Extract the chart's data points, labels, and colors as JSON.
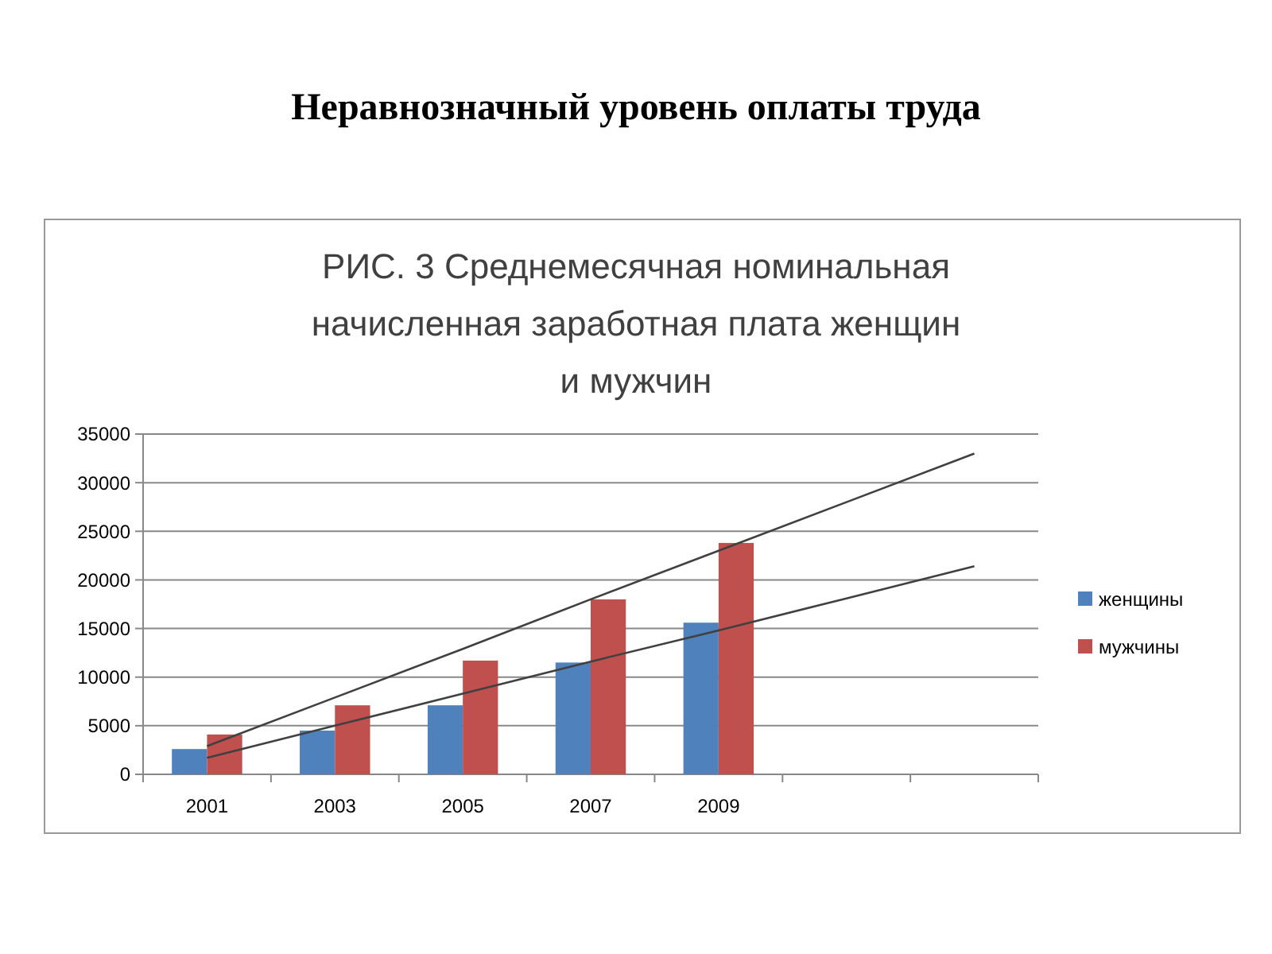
{
  "chart_data": {
    "type": "bar",
    "title": "Неравнозначный уровень оплаты труда",
    "subtitle": "РИС. 3 Среднемесячная номинальная начисленная заработная плата женщин  и мужчин",
    "categories": [
      "2001",
      "2003",
      "2005",
      "2007",
      "2009",
      null,
      null
    ],
    "series": [
      {
        "name": "женщины",
        "color": "#4f81bd",
        "values": [
          2600,
          4500,
          7100,
          11500,
          15600,
          null,
          null
        ]
      },
      {
        "name": "мужчины",
        "color": "#c0504d",
        "values": [
          4100,
          7100,
          11700,
          18000,
          23800,
          null,
          null
        ]
      },
      {
        "type": "line",
        "color": "#404040",
        "values": [
          2900,
          7900,
          12900,
          18000,
          23000,
          28000,
          33000
        ]
      },
      {
        "type": "line",
        "color": "#404040",
        "values": [
          1700,
          5000,
          8300,
          11600,
          14800,
          18100,
          21400
        ]
      }
    ],
    "ylim": [
      0,
      35000
    ],
    "yticks": [
      0,
      5000,
      10000,
      15000,
      20000,
      25000,
      30000,
      35000
    ],
    "grid": "y",
    "legend": "right",
    "marker": "none",
    "line_style": "solid"
  }
}
